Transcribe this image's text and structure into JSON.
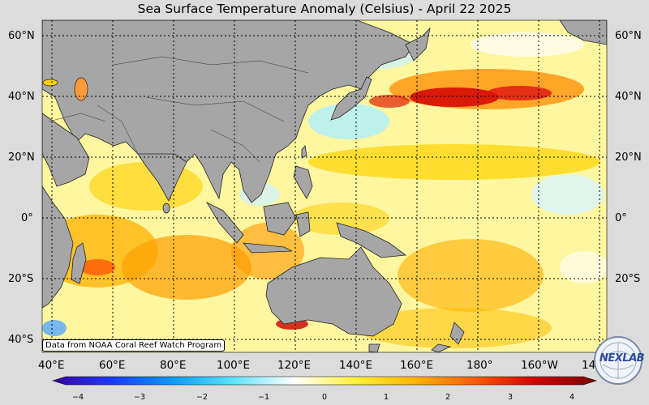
{
  "title": "Sea Surface Temperature Anomaly (Celsius) - April 22 2025",
  "map": {
    "lat_labels": [
      "60°N",
      "40°N",
      "20°N",
      "0°",
      "20°S",
      "40°S"
    ],
    "lon_labels": [
      "40°E",
      "60°E",
      "80°E",
      "100°E",
      "120°E",
      "140°E",
      "160°E",
      "180°",
      "160°W",
      "14"
    ],
    "credit": "Data from NOAA Coral Reef Watch Program",
    "colors": {
      "ocean_base": "#fff8a8",
      "land": "#a6a6a6",
      "warm": "#ff8c00",
      "hot": "#cc0000",
      "cool": "#9fe8ff"
    }
  },
  "colorbar": {
    "ticks": [
      "−4",
      "−3",
      "−2",
      "−1",
      "0",
      "1",
      "2",
      "3",
      "4"
    ],
    "range": [
      -4,
      4
    ],
    "stops": [
      "#3a00a0",
      "#1a3cff",
      "#0a9cff",
      "#5fe4ff",
      "#ffffff",
      "#fff23a",
      "#ffb400",
      "#ff5a00",
      "#d00000",
      "#7a0000"
    ]
  },
  "logo": {
    "text": "NEXLAB"
  }
}
